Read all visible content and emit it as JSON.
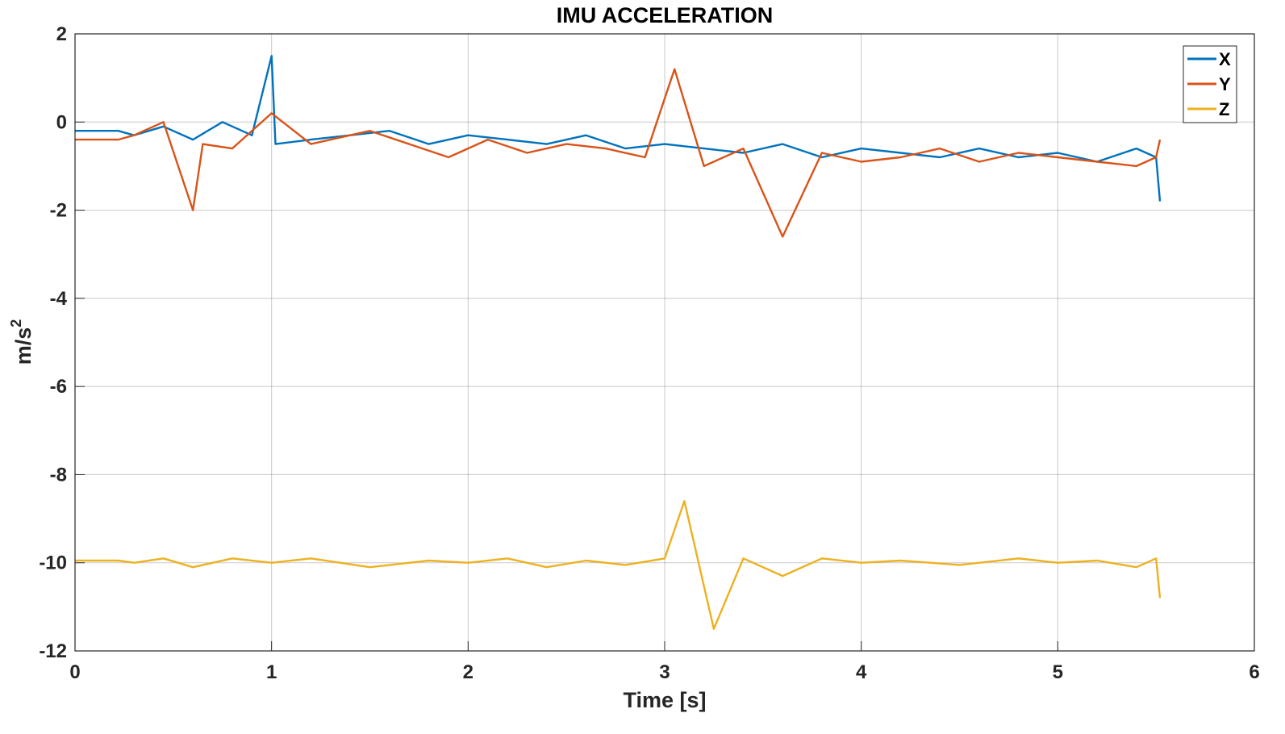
{
  "chart_data": {
    "type": "line",
    "title": "IMU ACCELERATION",
    "xlabel": "Time [s]",
    "ylabel": "m/s",
    "ylabel_superscript": "2",
    "xlim": [
      0,
      6
    ],
    "ylim": [
      -12,
      2
    ],
    "xticks": [
      "0",
      "1",
      "2",
      "3",
      "4",
      "5",
      "6"
    ],
    "yticks": [
      "2",
      "0",
      "-2",
      "-4",
      "-6",
      "-8",
      "-10",
      "-12"
    ],
    "grid": true,
    "legend_position": "top-right",
    "series": [
      {
        "name": "X",
        "color": "#0072BD",
        "x": [
          0,
          0.1,
          0.22,
          0.3,
          0.45,
          0.6,
          0.75,
          0.9,
          1.0,
          1.02,
          1.2,
          1.4,
          1.6,
          1.8,
          2.0,
          2.2,
          2.4,
          2.6,
          2.8,
          3.0,
          3.2,
          3.4,
          3.6,
          3.8,
          4.0,
          4.2,
          4.4,
          4.6,
          4.8,
          5.0,
          5.2,
          5.4,
          5.5,
          5.52
        ],
        "y": [
          -0.2,
          -0.2,
          -0.2,
          -0.3,
          -0.1,
          -0.4,
          0.0,
          -0.3,
          1.5,
          -0.5,
          -0.4,
          -0.3,
          -0.2,
          -0.5,
          -0.3,
          -0.4,
          -0.5,
          -0.3,
          -0.6,
          -0.5,
          -0.6,
          -0.7,
          -0.5,
          -0.8,
          -0.6,
          -0.7,
          -0.8,
          -0.6,
          -0.8,
          -0.7,
          -0.9,
          -0.6,
          -0.8,
          -1.8
        ]
      },
      {
        "name": "Y",
        "color": "#D95319",
        "x": [
          0,
          0.1,
          0.22,
          0.3,
          0.45,
          0.6,
          0.65,
          0.8,
          1.0,
          1.2,
          1.5,
          1.9,
          2.1,
          2.3,
          2.5,
          2.7,
          2.9,
          3.05,
          3.2,
          3.4,
          3.6,
          3.8,
          4.0,
          4.2,
          4.4,
          4.6,
          4.8,
          5.0,
          5.2,
          5.4,
          5.5,
          5.52
        ],
        "y": [
          -0.4,
          -0.4,
          -0.4,
          -0.3,
          0.0,
          -2.0,
          -0.5,
          -0.6,
          0.2,
          -0.5,
          -0.2,
          -0.8,
          -0.4,
          -0.7,
          -0.5,
          -0.6,
          -0.8,
          1.2,
          -1.0,
          -0.6,
          -2.6,
          -0.7,
          -0.9,
          -0.8,
          -0.6,
          -0.9,
          -0.7,
          -0.8,
          -0.9,
          -1.0,
          -0.8,
          -0.4
        ]
      },
      {
        "name": "Z",
        "color": "#EDB120",
        "x": [
          0,
          0.1,
          0.22,
          0.3,
          0.45,
          0.6,
          0.8,
          1.0,
          1.2,
          1.5,
          1.8,
          2.0,
          2.2,
          2.4,
          2.6,
          2.8,
          3.0,
          3.1,
          3.25,
          3.4,
          3.6,
          3.8,
          4.0,
          4.2,
          4.5,
          4.8,
          5.0,
          5.2,
          5.4,
          5.5,
          5.52
        ],
        "y": [
          -9.95,
          -9.95,
          -9.95,
          -10.0,
          -9.9,
          -10.1,
          -9.9,
          -10.0,
          -9.9,
          -10.1,
          -9.95,
          -10.0,
          -9.9,
          -10.1,
          -9.95,
          -10.05,
          -9.9,
          -8.6,
          -11.5,
          -9.9,
          -10.3,
          -9.9,
          -10.0,
          -9.95,
          -10.05,
          -9.9,
          -10.0,
          -9.95,
          -10.1,
          -9.9,
          -10.8
        ]
      }
    ]
  }
}
